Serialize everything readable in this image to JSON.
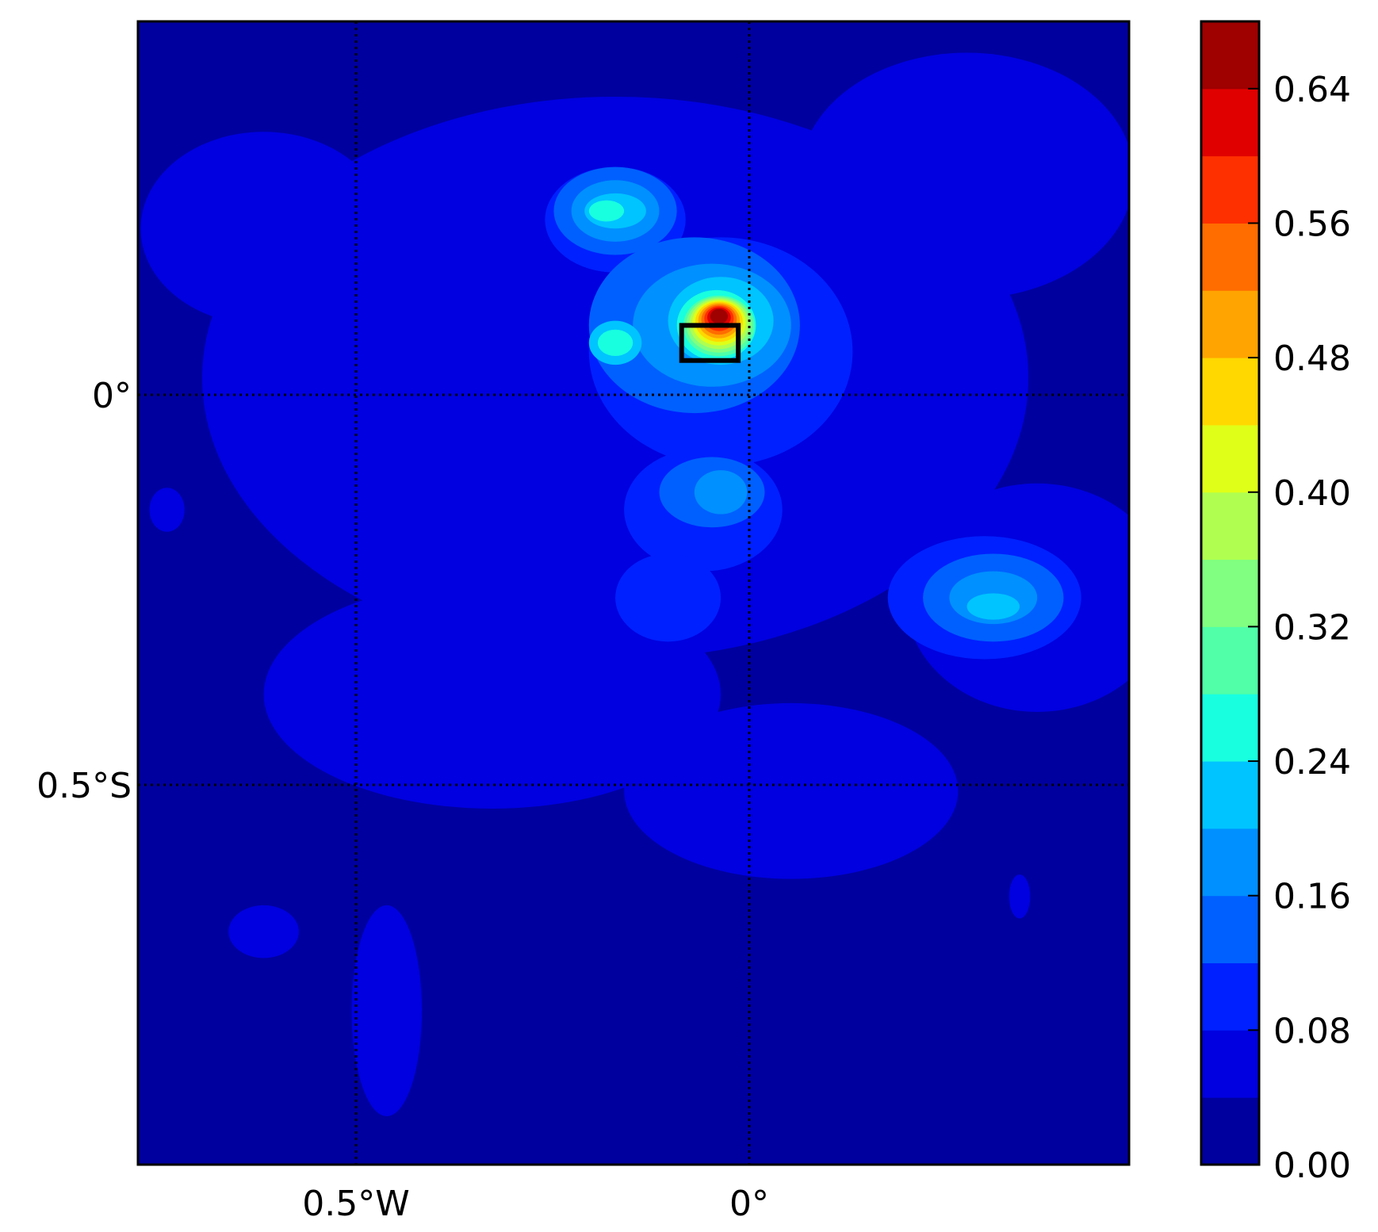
{
  "chart_data": {
    "type": "heatmap",
    "subtype": "filled-contour map",
    "title": "",
    "xlabel": "",
    "ylabel": "",
    "x_ticks": [
      {
        "value": -0.5,
        "label": "0.5°W"
      },
      {
        "value": 0,
        "label": "0°"
      }
    ],
    "y_ticks": [
      {
        "value": 0,
        "label": "0°"
      },
      {
        "value": -0.5,
        "label": "0.5°S"
      }
    ],
    "xlim": [
      -0.78,
      0.48
    ],
    "ylim": [
      -0.99,
      0.48
    ],
    "grid": "dotted black at labelled meridians/parallels",
    "colormap": "jet",
    "levels": [
      0.0,
      0.04,
      0.08,
      0.12,
      0.16,
      0.2,
      0.24,
      0.28,
      0.32,
      0.36,
      0.4,
      0.44,
      0.48,
      0.52,
      0.56,
      0.6,
      0.64,
      0.68
    ],
    "level_colors": [
      "#00009f",
      "#0000e0",
      "#0020ff",
      "#0060ff",
      "#0090ff",
      "#00c4ff",
      "#18ffe0",
      "#50ffa8",
      "#80ff80",
      "#b0ff50",
      "#e0ff18",
      "#ffd800",
      "#ffa400",
      "#ff6c00",
      "#ff3000",
      "#e00000",
      "#9f0000"
    ],
    "colorbar": {
      "position": "right",
      "ticks": [
        "0.00",
        "0.08",
        "0.16",
        "0.24",
        "0.32",
        "0.40",
        "0.48",
        "0.56",
        "0.64"
      ]
    },
    "highlight_box": {
      "lon": [
        -0.086,
        -0.014
      ],
      "lat": [
        0.044,
        0.089
      ],
      "color": "#000000"
    },
    "peak_value_approx": 0.66,
    "peak_location_approx": {
      "lon": -0.03,
      "lat": 0.09
    }
  }
}
